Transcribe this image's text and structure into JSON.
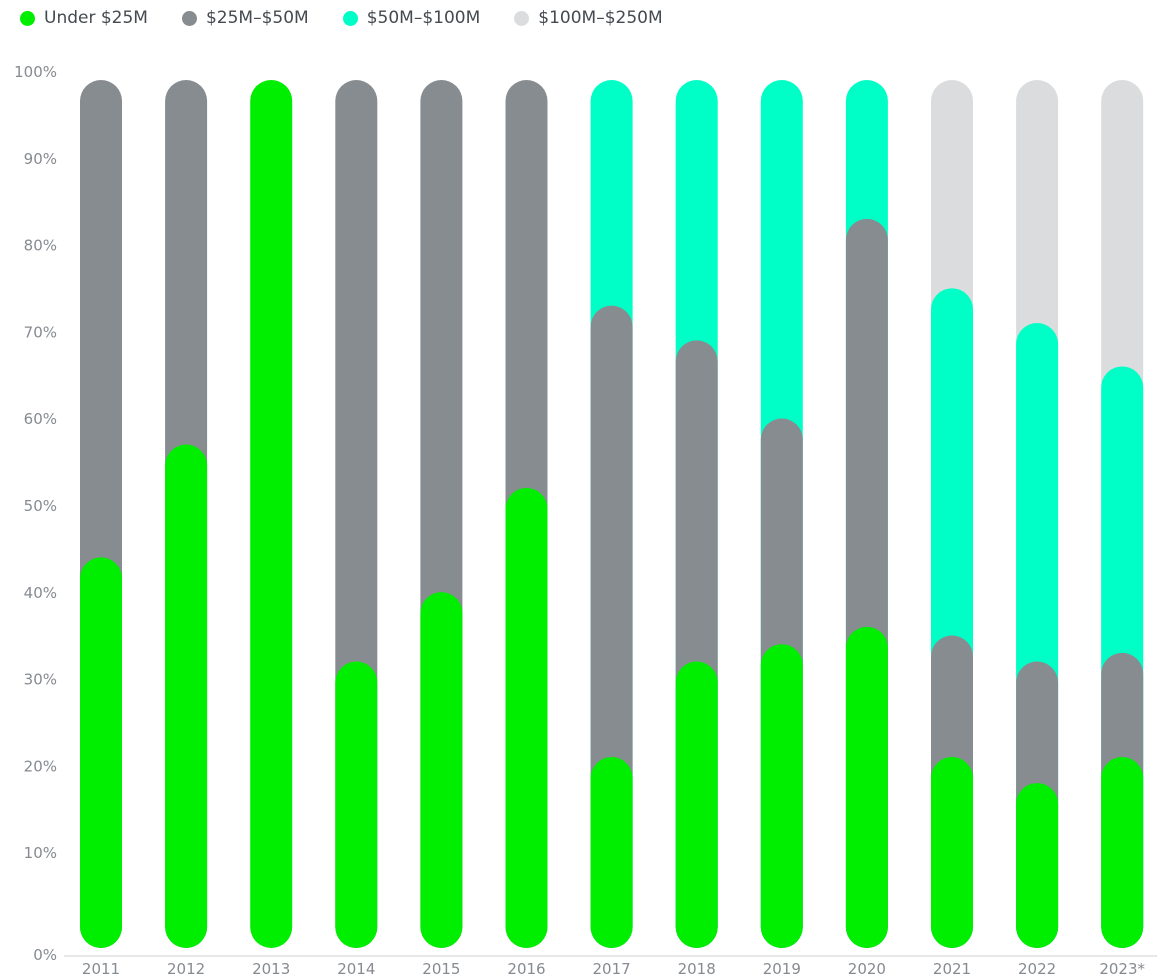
{
  "chart_data": {
    "type": "bar",
    "stacked": true,
    "percent": true,
    "title": "",
    "xlabel": "",
    "ylabel": "",
    "ylim": [
      0,
      100
    ],
    "y_ticks": [
      "0%",
      "10%",
      "20%",
      "30%",
      "40%",
      "50%",
      "60%",
      "70%",
      "80%",
      "90%",
      "100%"
    ],
    "grid": false,
    "legend_position": "top-left",
    "categories": [
      "2011",
      "2012",
      "2013",
      "2014",
      "2015",
      "2016",
      "2017",
      "2018",
      "2019",
      "2020",
      "2021",
      "2022",
      "2023*"
    ],
    "series": [
      {
        "name": "Under $25M",
        "color": "#00ee00",
        "values": [
          45,
          58,
          100,
          33,
          41,
          53,
          22,
          33,
          35,
          37,
          22,
          19,
          22
        ]
      },
      {
        "name": "$25M–$50M",
        "color": "#878c91",
        "values": [
          55,
          42,
          0,
          67,
          59,
          47,
          52,
          37,
          26,
          47,
          14,
          14,
          12
        ]
      },
      {
        "name": "$50M–$100M",
        "color": "#00ffc6",
        "values": [
          0,
          0,
          0,
          0,
          0,
          0,
          26,
          30,
          39,
          16,
          40,
          39,
          33
        ]
      },
      {
        "name": "$100M–$250M",
        "color": "#dadcde",
        "values": [
          0,
          0,
          0,
          0,
          0,
          0,
          0,
          0,
          0,
          0,
          24,
          28,
          33
        ]
      }
    ]
  }
}
